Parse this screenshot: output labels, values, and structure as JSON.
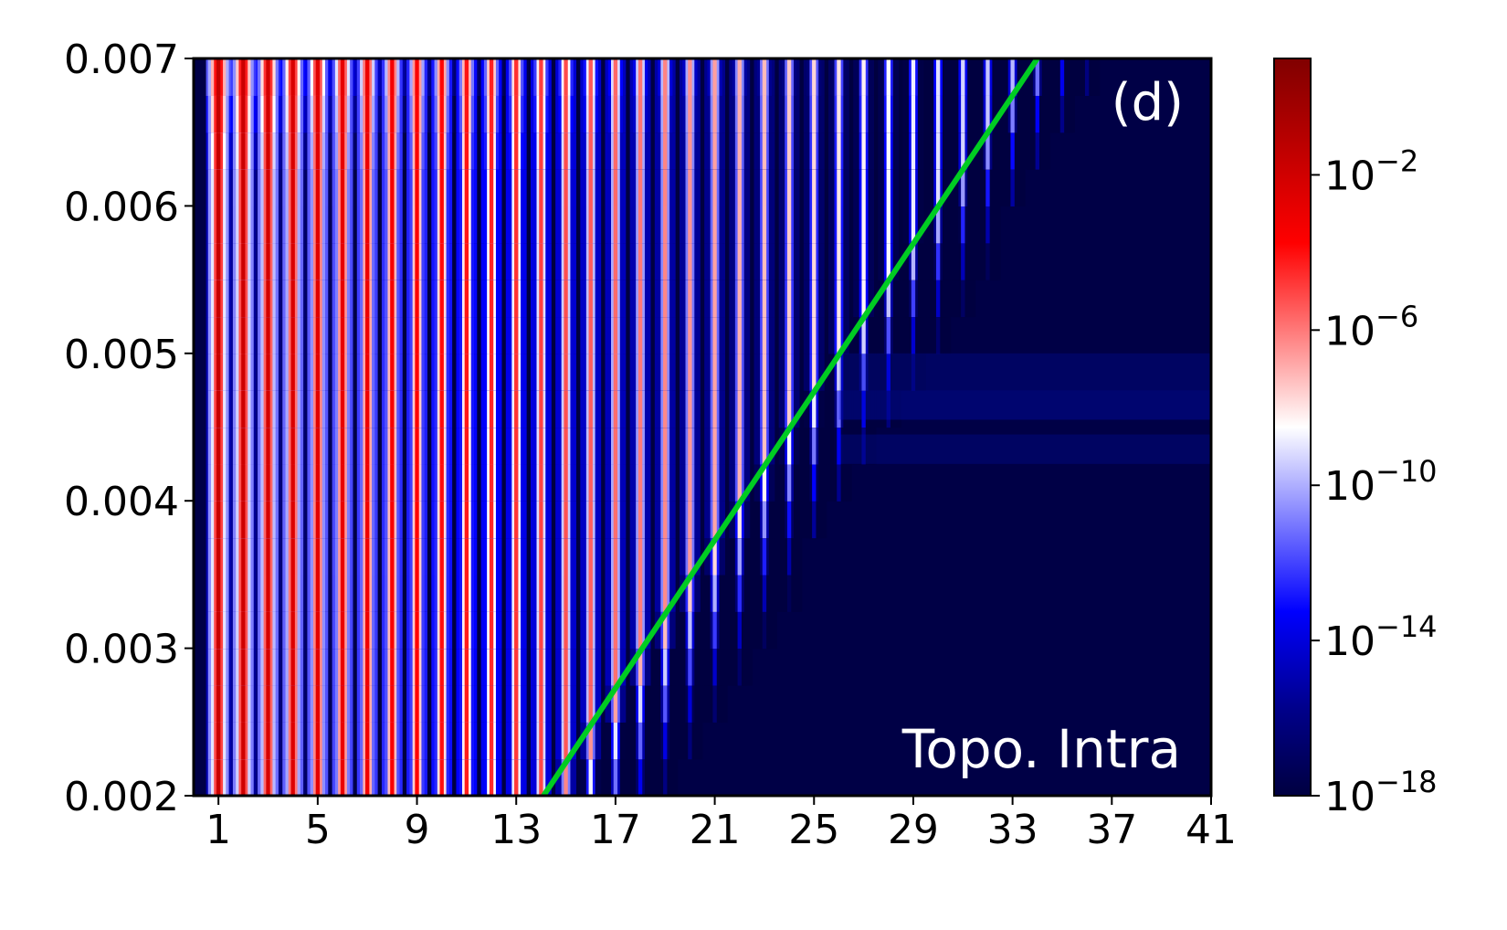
{
  "chart_data": {
    "type": "heatmap",
    "title": "",
    "xlabel": "",
    "ylabel": "",
    "panel_label": "(d)",
    "annotation": "Topo. Intra",
    "x_range": [
      0,
      41
    ],
    "y_range": [
      0.002,
      0.007
    ],
    "x_ticks": [
      "1",
      "5",
      "9",
      "13",
      "17",
      "21",
      "25",
      "29",
      "33",
      "37",
      "41"
    ],
    "x_tick_values": [
      1,
      5,
      9,
      13,
      17,
      21,
      25,
      29,
      33,
      37,
      41
    ],
    "y_ticks": [
      "0.002",
      "0.003",
      "0.004",
      "0.005",
      "0.006",
      "0.007"
    ],
    "y_tick_values": [
      0.002,
      0.003,
      0.004,
      0.005,
      0.006,
      0.007
    ],
    "colorbar": {
      "scale": "log",
      "range_exponent": [
        -18,
        1
      ],
      "tick_exponents": [
        -18,
        -14,
        -10,
        -6,
        -2
      ],
      "tick_labels": [
        {
          "base": "10",
          "exp": "−18"
        },
        {
          "base": "10",
          "exp": "−14"
        },
        {
          "base": "10",
          "exp": "−10"
        },
        {
          "base": "10",
          "exp": "−6"
        },
        {
          "base": "10",
          "exp": "−2"
        }
      ],
      "colormap": "seismic"
    },
    "boundary_line": {
      "color": "#00cc22",
      "points": [
        [
          14.1,
          0.002
        ],
        [
          34.0,
          0.007
        ]
      ]
    },
    "stripes": {
      "count": 41,
      "peak_decay_per_index": 0.26,
      "gap_decay_per_index": 0.5
    }
  }
}
